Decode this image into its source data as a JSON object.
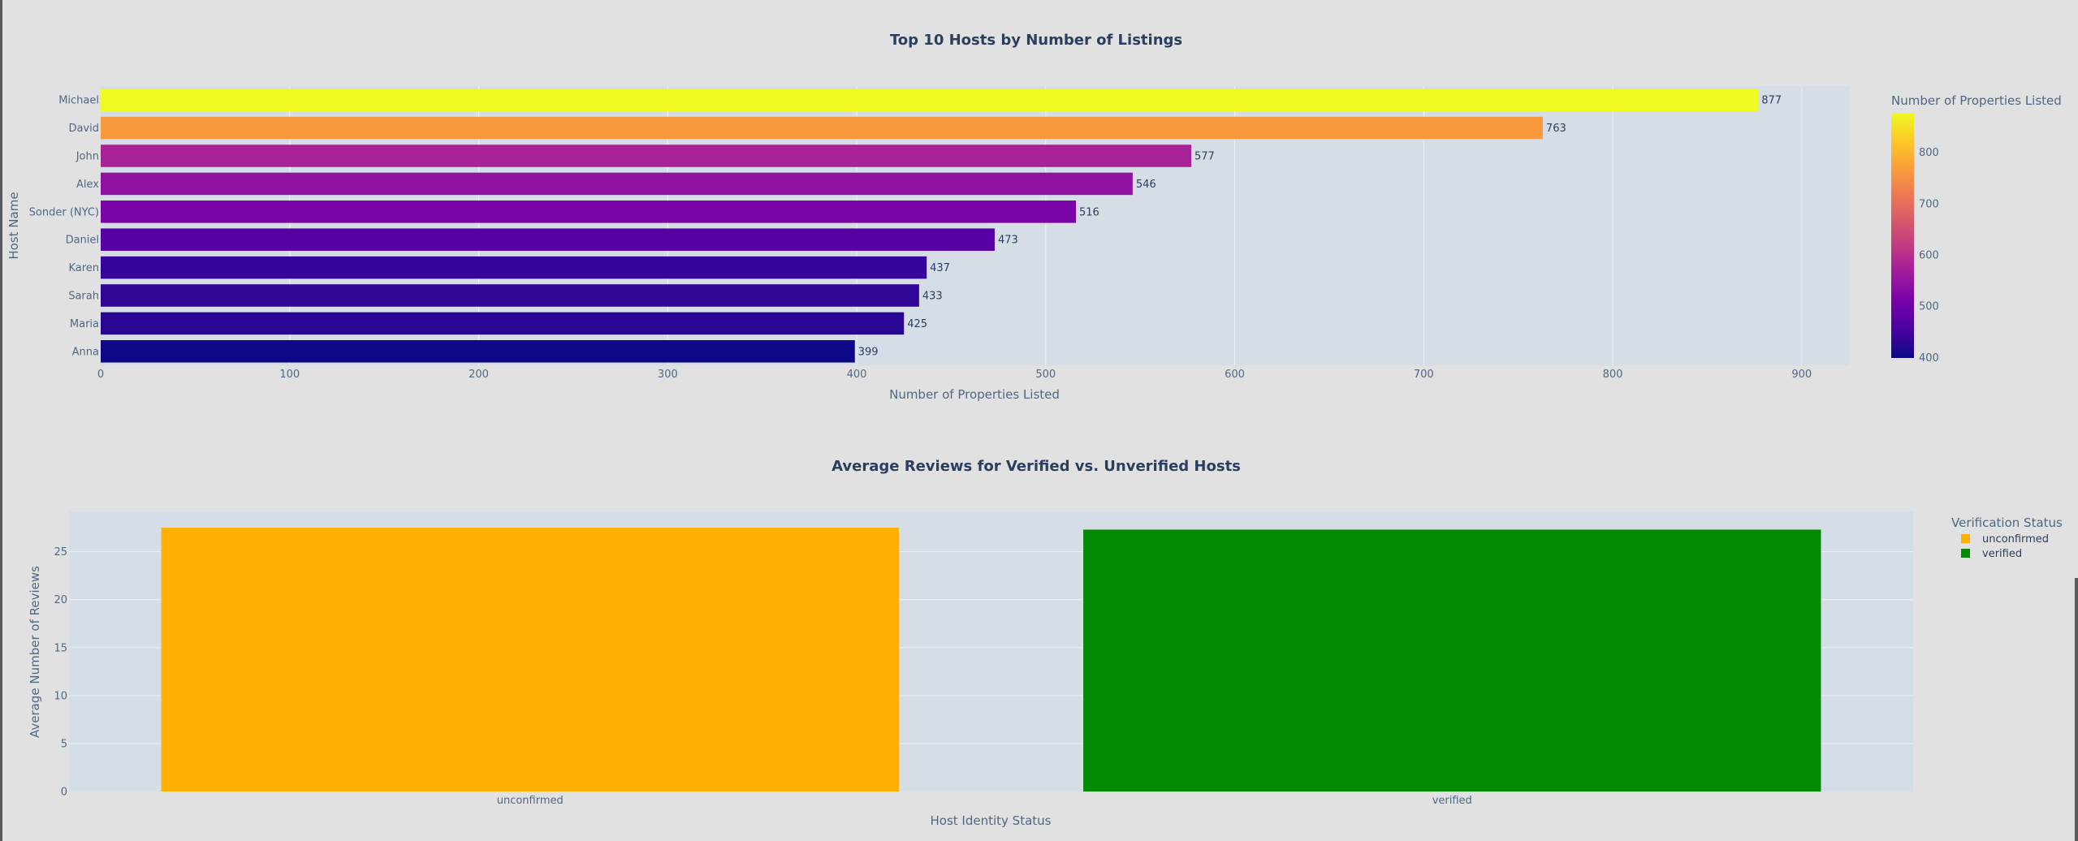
{
  "chart_data": [
    {
      "type": "bar",
      "orientation": "horizontal",
      "title": "Top 10 Hosts by Number of Listings",
      "xlabel": "Number of Properties Listed",
      "ylabel": "Host Name",
      "categories": [
        "Michael",
        "David",
        "John",
        "Alex",
        "Sonder (NYC)",
        "Daniel",
        "Karen",
        "Sarah",
        "Maria",
        "Anna"
      ],
      "values": [
        877,
        763,
        577,
        546,
        516,
        473,
        437,
        433,
        425,
        399
      ],
      "xlim": [
        0,
        925
      ],
      "xticks": [
        "0",
        "100",
        "200",
        "300",
        "400",
        "500",
        "600",
        "700",
        "800",
        "900"
      ],
      "colorscale": "plasma",
      "colorbar": {
        "title": "Number of Properties Listed",
        "range": [
          399,
          877
        ],
        "ticks": [
          "400",
          "500",
          "600",
          "700",
          "800"
        ]
      },
      "grid": true
    },
    {
      "type": "bar",
      "title": "Average Reviews for Verified vs. Unverified Hosts",
      "xlabel": "Host Identity Status",
      "ylabel": "Average Number of Reviews",
      "categories": [
        "unconfirmed",
        "verified"
      ],
      "values": [
        27.5,
        27.3
      ],
      "colors": [
        "#ffb000",
        "#028a02"
      ],
      "ylim": [
        0,
        29.2
      ],
      "yticks": [
        "0",
        "5",
        "10",
        "15",
        "20",
        "25"
      ],
      "legend": {
        "title": "Verification Status",
        "entries": [
          "unconfirmed",
          "verified"
        ],
        "placement": "top-right"
      },
      "grid": true
    }
  ]
}
